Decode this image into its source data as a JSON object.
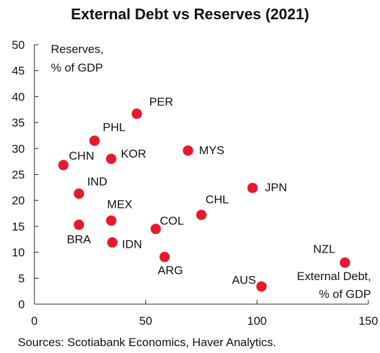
{
  "chart_data": {
    "type": "scatter",
    "title": "External Debt vs Reserves (2021)",
    "source": "Sources: Scotiabank Economics, Haver Analytics.",
    "ylabel_line1": "Reserves,",
    "ylabel_line2": "% of GDP",
    "xlabel_line1": "External Debt,",
    "xlabel_line2": "% of GDP",
    "xlim": [
      0,
      150
    ],
    "ylim": [
      0,
      50
    ],
    "xticks": [
      0,
      50,
      100,
      150
    ],
    "yticks": [
      0,
      5,
      10,
      15,
      20,
      25,
      30,
      35,
      40,
      45,
      50
    ],
    "grid": false,
    "marker_color": "#e8192c",
    "points": [
      {
        "label": "PER",
        "x": 46,
        "y": 36.7
      },
      {
        "label": "PHL",
        "x": 27,
        "y": 31.5
      },
      {
        "label": "MYS",
        "x": 69,
        "y": 29.6
      },
      {
        "label": "KOR",
        "x": 34.5,
        "y": 28
      },
      {
        "label": "CHN",
        "x": 13,
        "y": 26.8
      },
      {
        "label": "JPN",
        "x": 98,
        "y": 22.4
      },
      {
        "label": "IND",
        "x": 20,
        "y": 21.3
      },
      {
        "label": "CHL",
        "x": 75,
        "y": 17.2
      },
      {
        "label": "MEX",
        "x": 34.5,
        "y": 16.1
      },
      {
        "label": "BRA",
        "x": 20,
        "y": 15.3
      },
      {
        "label": "COL",
        "x": 54.5,
        "y": 14.5
      },
      {
        "label": "IDN",
        "x": 35,
        "y": 11.9
      },
      {
        "label": "ARG",
        "x": 58.5,
        "y": 9.1
      },
      {
        "label": "NZL",
        "x": 139.5,
        "y": 8
      },
      {
        "label": "AUS",
        "x": 102,
        "y": 3.4
      }
    ]
  }
}
